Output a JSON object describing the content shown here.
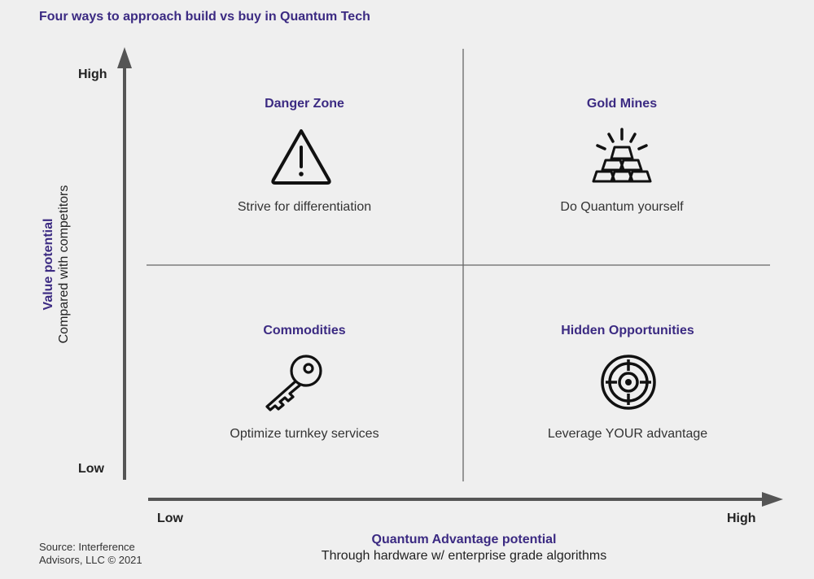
{
  "title": "Four ways to approach build vs buy in Quantum Tech",
  "y_axis": {
    "label": "Value potential",
    "sublabel": "Compared with competitors",
    "high": "High",
    "low": "Low"
  },
  "x_axis": {
    "label": "Quantum Advantage potential",
    "sublabel": "Through hardware w/ enterprise grade algorithms",
    "low": "Low",
    "high": "High"
  },
  "quadrants": {
    "top_left": {
      "title": "Danger Zone",
      "text": "Strive for differentiation",
      "icon": "warning-icon"
    },
    "top_right": {
      "title": "Gold Mines",
      "text": "Do Quantum yourself",
      "icon": "gold-bars-icon"
    },
    "bottom_left": {
      "title": "Commodities",
      "text": "Optimize turnkey services",
      "icon": "key-icon"
    },
    "bottom_right": {
      "title": "Hidden Opportunities",
      "text": "Leverage YOUR advantage",
      "icon": "target-icon"
    }
  },
  "source": "Source: Interference Advisors, LLC © 2021",
  "colors": {
    "accent": "#3b2a82",
    "axis": "#555555",
    "divider": "#666666",
    "background": "#efefef"
  }
}
